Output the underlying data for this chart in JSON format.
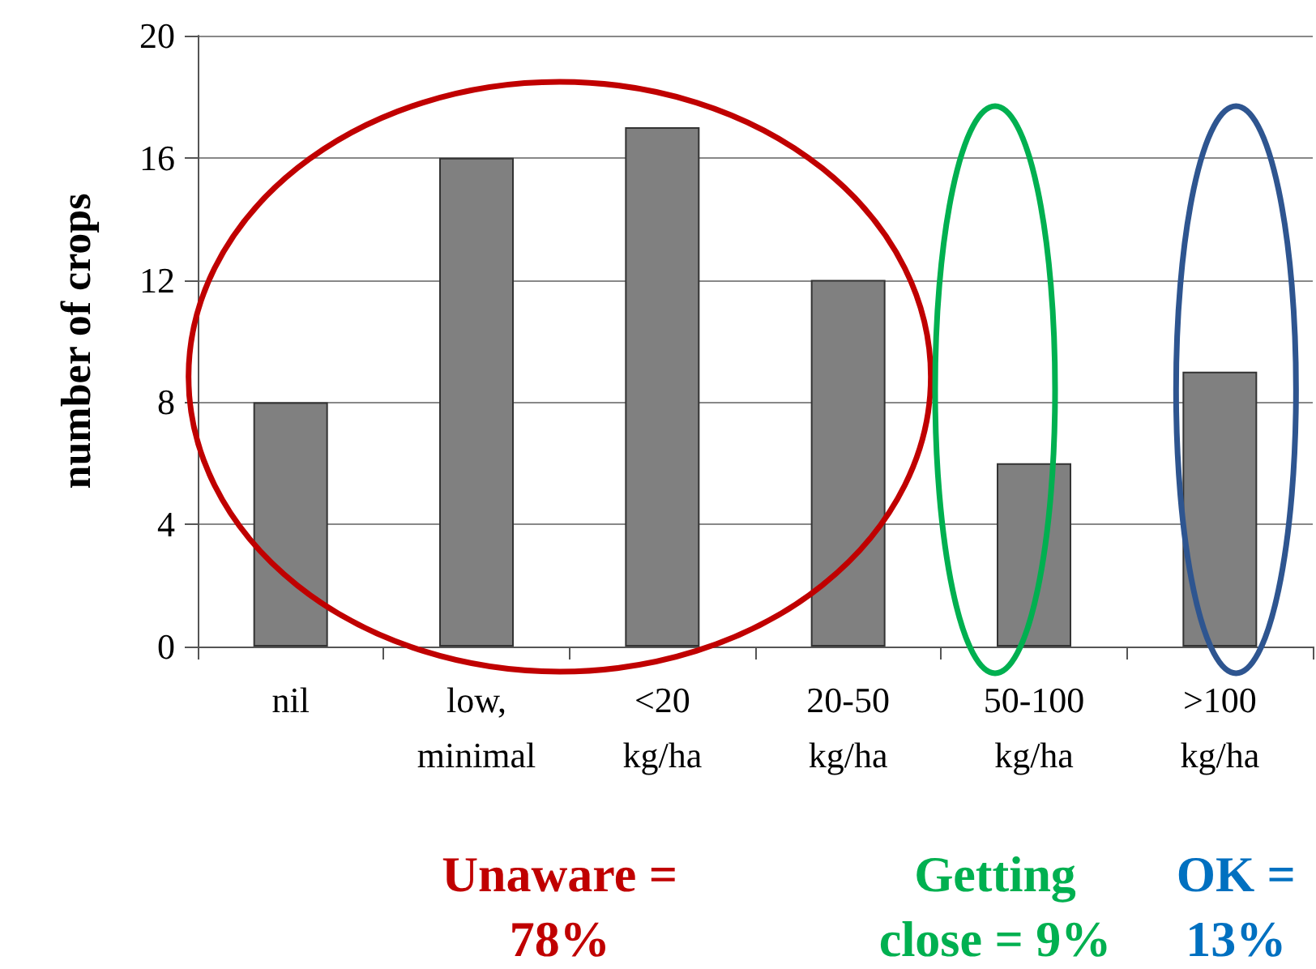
{
  "chart_data": {
    "type": "bar",
    "ylabel": "number of crops",
    "categories": [
      "nil",
      "low, minimal",
      "<20 kg/ha",
      "20-50 kg/ha",
      "50-100 kg/ha",
      ">100 kg/ha"
    ],
    "values": [
      8,
      16,
      17,
      12,
      6,
      9
    ],
    "color": "#808080",
    "ylim": [
      0,
      20
    ],
    "yticks": [
      0,
      4,
      8,
      12,
      16,
      20
    ],
    "grid": "y",
    "annotations": [
      "Unaware = 78%",
      "Getting close = 9%",
      "OK = 13%"
    ]
  }
}
